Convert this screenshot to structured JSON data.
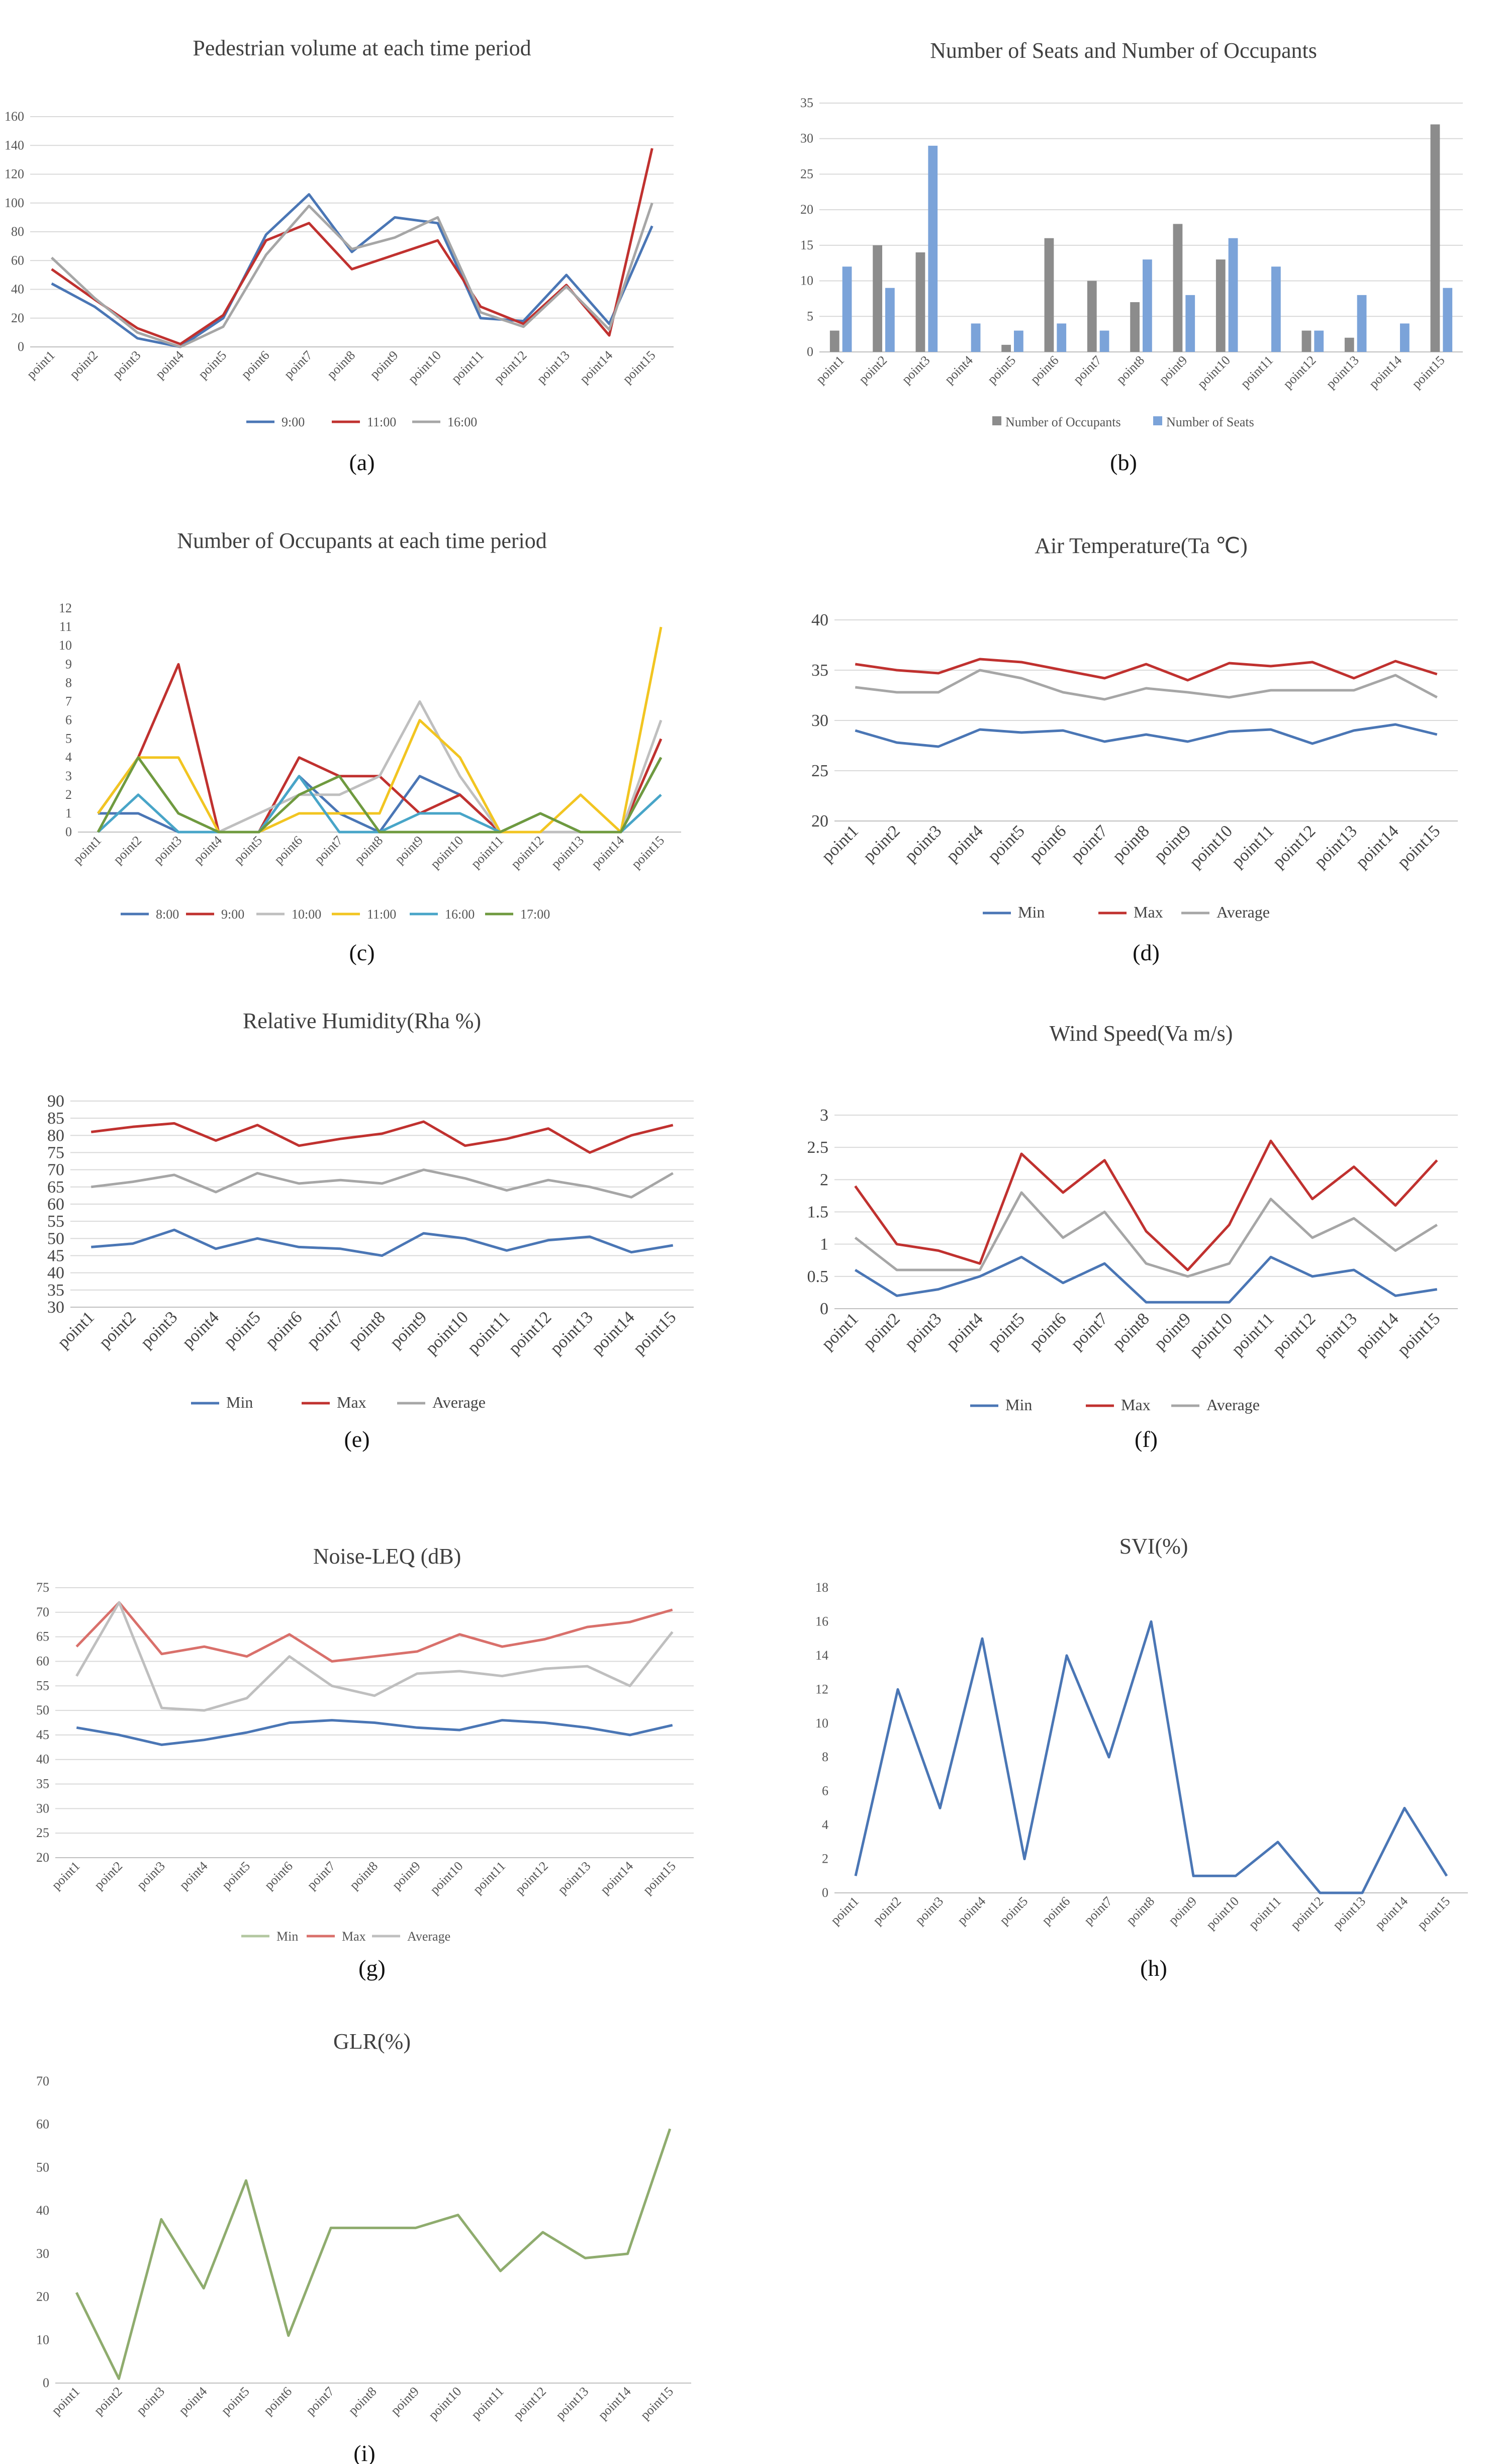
{
  "colors": {
    "blue": "#4a76b5",
    "red": "#c0312f",
    "gray": "#a6a6a6",
    "yellow": "#f2c521",
    "teal": "#48a5c8",
    "green": "#6f9a3f",
    "lightred": "#d9706b",
    "lightgray": "#bfbfbf",
    "lightgreen": "#b3c7a0",
    "barGray": "#8c8c8c",
    "barBlue": "#7ba3d9",
    "olive": "#8fac6e"
  },
  "chart_data": [
    {
      "id": "a",
      "type": "line",
      "title": "Pedestrian volume at each time period",
      "caption": "(a)",
      "categories": [
        "point1",
        "point2",
        "point3",
        "point4",
        "point5",
        "point6",
        "point7",
        "point8",
        "point9",
        "point10",
        "point11",
        "point12",
        "point13",
        "point14",
        "point15"
      ],
      "ylim": [
        0,
        160
      ],
      "yticks": [
        0,
        20,
        40,
        60,
        80,
        100,
        120,
        140,
        160
      ],
      "series": [
        {
          "name": "9:00",
          "color": "blue",
          "values": [
            44,
            28,
            6,
            0,
            20,
            78,
            106,
            66,
            90,
            86,
            20,
            18,
            50,
            16,
            84
          ]
        },
        {
          "name": "11:00",
          "color": "red",
          "values": [
            54,
            33,
            13,
            2,
            22,
            74,
            86,
            54,
            64,
            74,
            28,
            16,
            43,
            8,
            138
          ]
        },
        {
          "name": "16:00",
          "color": "gray",
          "values": [
            62,
            34,
            10,
            0,
            14,
            64,
            98,
            68,
            76,
            90,
            24,
            14,
            42,
            12,
            100
          ]
        }
      ]
    },
    {
      "id": "b",
      "type": "bar",
      "title": "Number of Seats and Number of Occupants",
      "caption": "(b)",
      "categories": [
        "point1",
        "point2",
        "point3",
        "point4",
        "point5",
        "point6",
        "point7",
        "point8",
        "point9",
        "point10",
        "point11",
        "point12",
        "point13",
        "point14",
        "point15"
      ],
      "ylim": [
        0,
        35
      ],
      "yticks": [
        0,
        5,
        10,
        15,
        20,
        25,
        30,
        35
      ],
      "series": [
        {
          "name": "Number of Occupants",
          "color": "barGray",
          "values": [
            3,
            15,
            14,
            0,
            1,
            16,
            10,
            7,
            18,
            13,
            0,
            3,
            2,
            0,
            32
          ]
        },
        {
          "name": "Number of Seats",
          "color": "barBlue",
          "values": [
            12,
            9,
            29,
            4,
            3,
            4,
            3,
            13,
            8,
            16,
            12,
            3,
            8,
            4,
            9
          ]
        }
      ]
    },
    {
      "id": "c",
      "type": "line",
      "title": "Number of Occupants at each time period",
      "caption": "(c)",
      "categories": [
        "point1",
        "point2",
        "point3",
        "point4",
        "point5",
        "point6",
        "point7",
        "point8",
        "point9",
        "point10",
        "point11",
        "point12",
        "point13",
        "point14",
        "point15"
      ],
      "ylim": [
        0,
        12
      ],
      "yticks": [
        0,
        1,
        2,
        3,
        4,
        5,
        6,
        7,
        8,
        9,
        10,
        11,
        12
      ],
      "series": [
        {
          "name": "8:00",
          "color": "blue",
          "values": [
            1,
            1,
            0,
            0,
            0,
            3,
            1,
            0,
            3,
            2,
            0,
            0,
            0,
            0,
            4
          ]
        },
        {
          "name": "9:00",
          "color": "red",
          "values": [
            1,
            4,
            9,
            0,
            0,
            4,
            3,
            3,
            1,
            2,
            0,
            0,
            0,
            0,
            5
          ]
        },
        {
          "name": "10:00",
          "color": "lightgray",
          "values": [
            1,
            4,
            1,
            0,
            1,
            2,
            2,
            3,
            7,
            3,
            0,
            0,
            0,
            0,
            6
          ]
        },
        {
          "name": "11:00",
          "color": "yellow",
          "values": [
            1,
            4,
            4,
            0,
            0,
            1,
            1,
            1,
            6,
            4,
            0,
            0,
            2,
            0,
            11
          ]
        },
        {
          "name": "16:00",
          "color": "teal",
          "values": [
            0,
            2,
            0,
            0,
            0,
            3,
            0,
            0,
            1,
            1,
            0,
            1,
            0,
            0,
            2
          ]
        },
        {
          "name": "17:00",
          "color": "green",
          "values": [
            0,
            4,
            1,
            0,
            0,
            2,
            3,
            0,
            0,
            0,
            0,
            1,
            0,
            0,
            4
          ]
        }
      ]
    },
    {
      "id": "d",
      "type": "line",
      "title": "Air Temperature(Ta ℃)",
      "caption": "(d)",
      "categories": [
        "point1",
        "point2",
        "point3",
        "point4",
        "point5",
        "point6",
        "point7",
        "point8",
        "point9",
        "point10",
        "point11",
        "point12",
        "point13",
        "point14",
        "point15"
      ],
      "ylim": [
        20,
        40
      ],
      "yticks": [
        20,
        25,
        30,
        35,
        40
      ],
      "series": [
        {
          "name": "Min",
          "color": "blue",
          "values": [
            29.0,
            27.8,
            27.4,
            29.1,
            28.8,
            29.0,
            27.9,
            28.6,
            27.9,
            28.9,
            29.1,
            27.7,
            29.0,
            29.6,
            28.6
          ]
        },
        {
          "name": "Max",
          "color": "red",
          "values": [
            35.6,
            35.0,
            34.7,
            36.1,
            35.8,
            35.0,
            34.2,
            35.6,
            34.0,
            35.7,
            35.4,
            35.8,
            34.2,
            35.9,
            34.6
          ]
        },
        {
          "name": "Average",
          "color": "gray",
          "values": [
            33.3,
            32.8,
            32.8,
            35.0,
            34.2,
            32.8,
            32.1,
            33.2,
            32.8,
            32.3,
            33.0,
            33.0,
            33.0,
            34.5,
            32.3
          ]
        }
      ]
    },
    {
      "id": "e",
      "type": "line",
      "title": "Relative Humidity(Rha %)",
      "caption": "(e)",
      "categories": [
        "point1",
        "point2",
        "point3",
        "point4",
        "point5",
        "point6",
        "point7",
        "point8",
        "point9",
        "point10",
        "point11",
        "point12",
        "point13",
        "point14",
        "point15"
      ],
      "ylim": [
        30,
        90
      ],
      "yticks": [
        30,
        35,
        40,
        45,
        50,
        55,
        60,
        65,
        70,
        75,
        80,
        85,
        90
      ],
      "series": [
        {
          "name": "Min",
          "color": "blue",
          "values": [
            47.5,
            48.5,
            52.5,
            47.0,
            50.0,
            47.5,
            47.0,
            45.0,
            51.5,
            50.0,
            46.5,
            49.5,
            50.5,
            46.0,
            48.0
          ]
        },
        {
          "name": "Max",
          "color": "red",
          "values": [
            81,
            82.5,
            83.5,
            78.5,
            83,
            77,
            79,
            80.5,
            84,
            77,
            79,
            82,
            75,
            80,
            83
          ]
        },
        {
          "name": "Average",
          "color": "gray",
          "values": [
            65,
            66.5,
            68.5,
            63.5,
            69,
            66,
            67,
            66,
            70,
            67.5,
            64,
            67,
            65,
            62,
            69
          ]
        }
      ]
    },
    {
      "id": "f",
      "type": "line",
      "title": "Wind Speed(Va m/s)",
      "caption": "(f)",
      "categories": [
        "point1",
        "point2",
        "point3",
        "point4",
        "point5",
        "point6",
        "point7",
        "point8",
        "point9",
        "point10",
        "point11",
        "point12",
        "point13",
        "point14",
        "point15"
      ],
      "ylim": [
        0,
        3
      ],
      "yticks": [
        0,
        0.5,
        1,
        1.5,
        2,
        2.5,
        3
      ],
      "series": [
        {
          "name": "Min",
          "color": "blue",
          "values": [
            0.6,
            0.2,
            0.3,
            0.5,
            0.8,
            0.4,
            0.7,
            0.1,
            0.1,
            0.1,
            0.8,
            0.5,
            0.6,
            0.2,
            0.3
          ]
        },
        {
          "name": "Max",
          "color": "red",
          "values": [
            1.9,
            1.0,
            0.9,
            0.7,
            2.4,
            1.8,
            2.3,
            1.2,
            0.6,
            1.3,
            2.6,
            1.7,
            2.2,
            1.6,
            2.3
          ]
        },
        {
          "name": "Average",
          "color": "gray",
          "values": [
            1.1,
            0.6,
            0.6,
            0.6,
            1.8,
            1.1,
            1.5,
            0.7,
            0.5,
            0.7,
            1.7,
            1.1,
            1.4,
            0.9,
            1.3
          ]
        }
      ]
    },
    {
      "id": "g",
      "type": "line",
      "title": "Noise-LEQ (dB)",
      "caption": "(g)",
      "categories": [
        "point1",
        "point2",
        "point3",
        "point4",
        "point5",
        "point6",
        "point7",
        "point8",
        "point9",
        "point10",
        "point11",
        "point12",
        "point13",
        "point14",
        "point15"
      ],
      "ylim": [
        20,
        75
      ],
      "yticks": [
        20,
        25,
        30,
        35,
        40,
        45,
        50,
        55,
        60,
        65,
        70,
        75
      ],
      "series": [
        {
          "name": "Min",
          "color": "blue",
          "values": [
            46.5,
            45.0,
            43.0,
            44.0,
            45.5,
            47.5,
            48.0,
            47.5,
            46.5,
            46.0,
            48.0,
            47.5,
            46.5,
            45.0,
            47.0
          ]
        },
        {
          "name": "Max",
          "color": "lightred",
          "values": [
            63,
            72,
            61.5,
            63,
            61,
            65.5,
            60,
            61,
            62,
            65.5,
            63,
            64.5,
            67,
            68,
            70.5
          ]
        },
        {
          "name": "Average",
          "color": "lightgray",
          "values": [
            57,
            72,
            50.5,
            50,
            52.5,
            61,
            55,
            53,
            57.5,
            58,
            57,
            58.5,
            59,
            55,
            66
          ]
        }
      ],
      "legend_colors": [
        "lightgreen",
        "lightred",
        "lightgray"
      ]
    },
    {
      "id": "h",
      "type": "line",
      "title": "SVI(%)",
      "caption": "(h)",
      "categories": [
        "point1",
        "point2",
        "point3",
        "point4",
        "point5",
        "point6",
        "point7",
        "point8",
        "point9",
        "point10",
        "point11",
        "point12",
        "point13",
        "point14",
        "point15"
      ],
      "ylim": [
        0,
        18
      ],
      "yticks": [
        0,
        2,
        4,
        6,
        8,
        10,
        12,
        14,
        16,
        18
      ],
      "series": [
        {
          "name": "SVI",
          "color": "blue",
          "values": [
            1,
            12,
            5,
            15,
            2,
            14,
            8,
            16,
            1,
            1,
            3,
            0,
            0,
            5,
            1
          ]
        }
      ]
    },
    {
      "id": "i",
      "type": "line",
      "title": "GLR(%)",
      "caption": "(i)",
      "categories": [
        "point1",
        "point2",
        "point3",
        "point4",
        "point5",
        "point6",
        "point7",
        "point8",
        "point9",
        "point10",
        "point11",
        "point12",
        "point13",
        "point14",
        "point15"
      ],
      "ylim": [
        0,
        70
      ],
      "yticks": [
        0,
        10,
        20,
        30,
        40,
        50,
        60,
        70
      ],
      "series": [
        {
          "name": "GLR",
          "color": "olive",
          "values": [
            21,
            1,
            38,
            22,
            47,
            11,
            36,
            36,
            36,
            39,
            26,
            35,
            29,
            30,
            59
          ]
        }
      ]
    }
  ]
}
